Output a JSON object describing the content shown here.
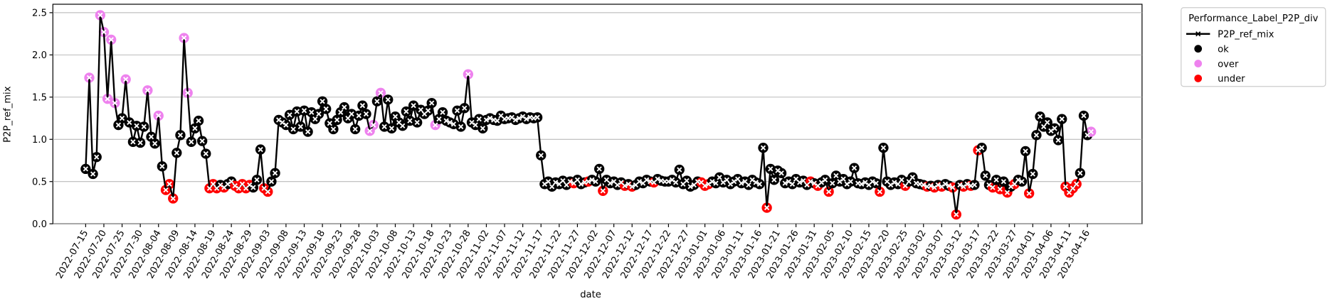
{
  "chart_data": {
    "type": "line",
    "x_label": "date",
    "y_label": "P2P_ref_mix",
    "grid": "y",
    "legend": "outside upper right",
    "xlim": [
      "2022-07-06",
      "2023-05-01"
    ],
    "ylim": [
      0,
      2.6
    ],
    "yticks": [
      {
        "value": 0,
        "label": "0.0"
      },
      {
        "value": 0.5,
        "label": "0.5"
      },
      {
        "value": 1,
        "label": "1.0"
      },
      {
        "value": 1.5,
        "label": "1.5"
      },
      {
        "value": 2,
        "label": "2.0"
      },
      {
        "value": 2.5,
        "label": "2.5"
      }
    ],
    "xticks": [
      "2022-07-15",
      "2022-07-20",
      "2022-07-25",
      "2022-07-30",
      "2022-08-04",
      "2022-08-09",
      "2022-08-14",
      "2022-08-19",
      "2022-08-24",
      "2022-08-29",
      "2022-09-03",
      "2022-09-08",
      "2022-09-13",
      "2022-09-18",
      "2022-09-23",
      "2022-09-28",
      "2022-10-03",
      "2022-10-08",
      "2022-10-13",
      "2022-10-18",
      "2022-10-23",
      "2022-10-28",
      "2022-11-02",
      "2022-11-07",
      "2022-11-12",
      "2022-11-17",
      "2022-11-22",
      "2022-11-27",
      "2022-12-02",
      "2022-12-07",
      "2022-12-12",
      "2022-12-17",
      "2022-12-22",
      "2022-12-27",
      "2023-01-01",
      "2023-01-06",
      "2023-01-11",
      "2023-01-16",
      "2023-01-21",
      "2023-01-26",
      "2023-01-31",
      "2023-02-05",
      "2023-02-10",
      "2023-02-15",
      "2023-02-20",
      "2023-02-25",
      "2023-03-02",
      "2023-03-07",
      "2023-03-12",
      "2023-03-17",
      "2023-03-22",
      "2023-03-27",
      "2023-04-01",
      "2023-04-06",
      "2023-04-11",
      "2023-04-16"
    ],
    "x": [
      "2022-07-15",
      "2022-07-16",
      "2022-07-17",
      "2022-07-18",
      "2022-07-19",
      "2022-07-20",
      "2022-07-21",
      "2022-07-22",
      "2022-07-23",
      "2022-07-24",
      "2022-07-25",
      "2022-07-26",
      "2022-07-27",
      "2022-07-28",
      "2022-07-29",
      "2022-07-30",
      "2022-07-31",
      "2022-08-01",
      "2022-08-02",
      "2022-08-03",
      "2022-08-04",
      "2022-08-05",
      "2022-08-06",
      "2022-08-07",
      "2022-08-08",
      "2022-08-09",
      "2022-08-10",
      "2022-08-11",
      "2022-08-12",
      "2022-08-13",
      "2022-08-14",
      "2022-08-15",
      "2022-08-16",
      "2022-08-17",
      "2022-08-18",
      "2022-08-19",
      "2022-08-20",
      "2022-08-21",
      "2022-08-22",
      "2022-08-23",
      "2022-08-24",
      "2022-08-25",
      "2022-08-26",
      "2022-08-27",
      "2022-08-28",
      "2022-08-29",
      "2022-08-30",
      "2022-08-31",
      "2022-09-01",
      "2022-09-02",
      "2022-09-03",
      "2022-09-04",
      "2022-09-05",
      "2022-09-06",
      "2022-09-07",
      "2022-09-08",
      "2022-09-09",
      "2022-09-10",
      "2022-09-11",
      "2022-09-12",
      "2022-09-13",
      "2022-09-14",
      "2022-09-15",
      "2022-09-16",
      "2022-09-17",
      "2022-09-18",
      "2022-09-19",
      "2022-09-20",
      "2022-09-21",
      "2022-09-22",
      "2022-09-23",
      "2022-09-24",
      "2022-09-25",
      "2022-09-26",
      "2022-09-27",
      "2022-09-28",
      "2022-09-29",
      "2022-09-30",
      "2022-10-01",
      "2022-10-02",
      "2022-10-03",
      "2022-10-04",
      "2022-10-05",
      "2022-10-06",
      "2022-10-07",
      "2022-10-08",
      "2022-10-09",
      "2022-10-10",
      "2022-10-11",
      "2022-10-12",
      "2022-10-13",
      "2022-10-14",
      "2022-10-15",
      "2022-10-16",
      "2022-10-17",
      "2022-10-18",
      "2022-10-19",
      "2022-10-20",
      "2022-10-21",
      "2022-10-22",
      "2022-10-23",
      "2022-10-24",
      "2022-10-25",
      "2022-10-26",
      "2022-10-27",
      "2022-10-28",
      "2022-10-29",
      "2022-10-30",
      "2022-10-31",
      "2022-11-01",
      "2022-11-02",
      "2022-11-03",
      "2022-11-04",
      "2022-11-05",
      "2022-11-06",
      "2022-11-07",
      "2022-11-08",
      "2022-11-09",
      "2022-11-10",
      "2022-11-11",
      "2022-11-12",
      "2022-11-13",
      "2022-11-14",
      "2022-11-15",
      "2022-11-16",
      "2022-11-17",
      "2022-11-18",
      "2022-11-19",
      "2022-11-20",
      "2022-11-21",
      "2022-11-22",
      "2022-11-23",
      "2022-11-24",
      "2022-11-25",
      "2022-11-26",
      "2022-11-27",
      "2022-11-28",
      "2022-11-29",
      "2022-11-30",
      "2022-12-01",
      "2022-12-02",
      "2022-12-03",
      "2022-12-04",
      "2022-12-05",
      "2022-12-06",
      "2022-12-07",
      "2022-12-08",
      "2022-12-09",
      "2022-12-10",
      "2022-12-11",
      "2022-12-12",
      "2022-12-13",
      "2022-12-14",
      "2022-12-15",
      "2022-12-16",
      "2022-12-17",
      "2022-12-18",
      "2022-12-19",
      "2022-12-20",
      "2022-12-21",
      "2022-12-22",
      "2022-12-23",
      "2022-12-24",
      "2022-12-25",
      "2022-12-26",
      "2022-12-27",
      "2022-12-28",
      "2022-12-29",
      "2022-12-30",
      "2022-12-31",
      "2023-01-01",
      "2023-01-02",
      "2023-01-03",
      "2023-01-04",
      "2023-01-05",
      "2023-01-06",
      "2023-01-07",
      "2023-01-08",
      "2023-01-09",
      "2023-01-10",
      "2023-01-11",
      "2023-01-12",
      "2023-01-13",
      "2023-01-14",
      "2023-01-15",
      "2023-01-16",
      "2023-01-17",
      "2023-01-18",
      "2023-01-19",
      "2023-01-20",
      "2023-01-21",
      "2023-01-22",
      "2023-01-23",
      "2023-01-24",
      "2023-01-25",
      "2023-01-26",
      "2023-01-27",
      "2023-01-28",
      "2023-01-29",
      "2023-01-30",
      "2023-01-31",
      "2023-02-01",
      "2023-02-02",
      "2023-02-03",
      "2023-02-04",
      "2023-02-05",
      "2023-02-06",
      "2023-02-07",
      "2023-02-08",
      "2023-02-09",
      "2023-02-10",
      "2023-02-11",
      "2023-02-12",
      "2023-02-13",
      "2023-02-14",
      "2023-02-15",
      "2023-02-16",
      "2023-02-17",
      "2023-02-18",
      "2023-02-19",
      "2023-02-20",
      "2023-02-21",
      "2023-02-22",
      "2023-02-23",
      "2023-02-24",
      "2023-02-25",
      "2023-02-26",
      "2023-02-27",
      "2023-02-28",
      "2023-03-01",
      "2023-03-02",
      "2023-03-03",
      "2023-03-04",
      "2023-03-05",
      "2023-03-06",
      "2023-03-07",
      "2023-03-08",
      "2023-03-09",
      "2023-03-10",
      "2023-03-11",
      "2023-03-12",
      "2023-03-13",
      "2023-03-14",
      "2023-03-15",
      "2023-03-16",
      "2023-03-17",
      "2023-03-18",
      "2023-03-19",
      "2023-03-20",
      "2023-03-21",
      "2023-03-22",
      "2023-03-23",
      "2023-03-24",
      "2023-03-25",
      "2023-03-26",
      "2023-03-27",
      "2023-03-28",
      "2023-03-29",
      "2023-03-30",
      "2023-03-31",
      "2023-04-01",
      "2023-04-02",
      "2023-04-03",
      "2023-04-04",
      "2023-04-05",
      "2023-04-06",
      "2023-04-07",
      "2023-04-08",
      "2023-04-09",
      "2023-04-10",
      "2023-04-11",
      "2023-04-12",
      "2023-04-13",
      "2023-04-14",
      "2023-04-15",
      "2023-04-16",
      "2023-04-17"
    ],
    "series": [
      {
        "name": "P2P_ref_mix",
        "color": "#000000",
        "values": [
          0.65,
          1.73,
          0.59,
          0.79,
          2.47,
          2.27,
          1.48,
          2.18,
          1.43,
          1.17,
          1.25,
          1.71,
          1.2,
          0.97,
          1.16,
          0.96,
          1.15,
          1.58,
          1.03,
          0.95,
          1.28,
          0.68,
          0.4,
          0.47,
          0.3,
          0.84,
          1.05,
          2.2,
          1.55,
          0.97,
          1.13,
          1.22,
          0.98,
          0.83,
          0.42,
          0.47,
          0.42,
          0.46,
          0.43,
          0.47,
          0.5,
          0.45,
          0.42,
          0.47,
          0.42,
          0.46,
          0.43,
          0.52,
          0.88,
          0.42,
          0.38,
          0.5,
          0.6,
          1.23,
          1.2,
          1.17,
          1.29,
          1.12,
          1.33,
          1.15,
          1.34,
          1.09,
          1.32,
          1.24,
          1.3,
          1.45,
          1.36,
          1.19,
          1.12,
          1.23,
          1.32,
          1.38,
          1.25,
          1.3,
          1.12,
          1.28,
          1.4,
          1.3,
          1.1,
          1.17,
          1.45,
          1.55,
          1.15,
          1.47,
          1.13,
          1.27,
          1.2,
          1.16,
          1.33,
          1.22,
          1.4,
          1.2,
          1.35,
          1.3,
          1.34,
          1.43,
          1.17,
          1.24,
          1.32,
          1.22,
          1.2,
          1.18,
          1.34,
          1.15,
          1.37,
          1.77,
          1.2,
          1.17,
          1.24,
          1.13,
          1.23,
          1.25,
          1.23,
          1.22,
          1.28,
          1.24,
          1.25,
          1.26,
          1.23,
          1.25,
          1.27,
          1.24,
          1.26,
          1.25,
          1.26,
          0.81,
          0.47,
          0.5,
          0.44,
          0.49,
          0.47,
          0.51,
          0.46,
          0.5,
          0.48,
          0.52,
          0.47,
          0.49,
          0.5,
          0.52,
          0.5,
          0.65,
          0.39,
          0.52,
          0.48,
          0.5,
          0.46,
          0.49,
          0.45,
          0.47,
          0.44,
          0.46,
          0.5,
          0.48,
          0.52,
          0.5,
          0.49,
          0.53,
          0.51,
          0.5,
          0.5,
          0.52,
          0.49,
          0.64,
          0.47,
          0.51,
          0.44,
          0.46,
          0.5,
          0.49,
          0.45,
          0.47,
          0.5,
          0.48,
          0.55,
          0.49,
          0.52,
          0.47,
          0.5,
          0.53,
          0.48,
          0.5,
          0.46,
          0.52,
          0.49,
          0.47,
          0.9,
          0.19,
          0.65,
          0.52,
          0.63,
          0.6,
          0.48,
          0.5,
          0.47,
          0.53,
          0.49,
          0.51,
          0.46,
          0.5,
          0.48,
          0.45,
          0.49,
          0.52,
          0.38,
          0.48,
          0.57,
          0.5,
          0.53,
          0.47,
          0.5,
          0.66,
          0.48,
          0.47,
          0.49,
          0.46,
          0.5,
          0.48,
          0.38,
          0.9,
          0.5,
          0.46,
          0.49,
          0.47,
          0.52,
          0.45,
          0.5,
          0.55,
          0.48,
          0.47,
          0.46,
          0.44,
          0.45,
          0.43,
          0.46,
          0.44,
          0.47,
          0.45,
          0.43,
          0.11,
          0.46,
          0.44,
          0.47,
          0.45,
          0.46,
          0.87,
          0.9,
          0.57,
          0.46,
          0.43,
          0.52,
          0.41,
          0.5,
          0.37,
          0.44,
          0.47,
          0.52,
          0.5,
          0.86,
          0.36,
          0.59,
          1.05,
          1.27,
          1.15,
          1.2,
          1.1,
          1.13,
          0.99,
          1.24,
          0.44,
          0.37,
          0.42,
          0.47,
          0.6,
          1.28,
          1.05,
          1.09
        ]
      }
    ],
    "hue": {
      "title": "Performance_Label_P2P_div",
      "names": [
        "ok",
        "over",
        "under"
      ],
      "colors": [
        "#000000",
        "#ee82ee",
        "#ff0000"
      ],
      "values": [
        "ok",
        "over",
        "ok",
        "ok",
        "over",
        "over",
        "over",
        "over",
        "over",
        "ok",
        "ok",
        "over",
        "ok",
        "ok",
        "ok",
        "ok",
        "ok",
        "over",
        "ok",
        "ok",
        "over",
        "ok",
        "under",
        "under",
        "under",
        "ok",
        "ok",
        "over",
        "over",
        "ok",
        "ok",
        "ok",
        "ok",
        "ok",
        "under",
        "under",
        "under",
        "ok",
        "under",
        "ok",
        "ok",
        "under",
        "under",
        "under",
        "under",
        "under",
        "ok",
        "ok",
        "ok",
        "under",
        "under",
        "ok",
        "ok",
        "ok",
        "ok",
        "ok",
        "ok",
        "ok",
        "ok",
        "ok",
        "ok",
        "ok",
        "ok",
        "ok",
        "ok",
        "ok",
        "ok",
        "ok",
        "ok",
        "ok",
        "ok",
        "ok",
        "ok",
        "ok",
        "ok",
        "ok",
        "ok",
        "ok",
        "over",
        "over",
        "ok",
        "over",
        "ok",
        "ok",
        "ok",
        "ok",
        "ok",
        "ok",
        "ok",
        "ok",
        "ok",
        "ok",
        "ok",
        "ok",
        "ok",
        "ok",
        "over",
        "ok",
        "ok",
        "ok",
        "ok",
        "ok",
        "ok",
        "ok",
        "ok",
        "over",
        "ok",
        "ok",
        "ok",
        "ok",
        "ok",
        "ok",
        "ok",
        "ok",
        "ok",
        "ok",
        "ok",
        "ok",
        "ok",
        "ok",
        "ok",
        "ok",
        "ok",
        "ok",
        "ok",
        "ok",
        "ok",
        "ok",
        "ok",
        "ok",
        "ok",
        "ok",
        "ok",
        "ok",
        "under",
        "ok",
        "ok",
        "ok",
        "under",
        "ok",
        "ok",
        "ok",
        "under",
        "ok",
        "ok",
        "ok",
        "ok",
        "ok",
        "under",
        "ok",
        "under",
        "ok",
        "ok",
        "ok",
        "ok",
        "ok",
        "under",
        "ok",
        "ok",
        "ok",
        "ok",
        "ok",
        "ok",
        "ok",
        "ok",
        "ok",
        "ok",
        "ok",
        "ok",
        "under",
        "under",
        "under",
        "ok",
        "ok",
        "ok",
        "ok",
        "ok",
        "ok",
        "ok",
        "ok",
        "ok",
        "ok",
        "ok",
        "ok",
        "ok",
        "ok",
        "ok",
        "under",
        "ok",
        "ok",
        "ok",
        "ok",
        "ok",
        "ok",
        "ok",
        "ok",
        "ok",
        "ok",
        "ok",
        "under",
        "ok",
        "under",
        "ok",
        "ok",
        "under",
        "ok",
        "ok",
        "ok",
        "ok",
        "ok",
        "ok",
        "ok",
        "ok",
        "ok",
        "ok",
        "ok",
        "ok",
        "ok",
        "under",
        "ok",
        "ok",
        "ok",
        "ok",
        "ok",
        "ok",
        "under",
        "ok",
        "ok",
        "ok",
        "ok",
        "ok",
        "under",
        "ok",
        "under",
        "ok",
        "under",
        "ok",
        "ok",
        "under",
        "under",
        "ok",
        "under",
        "ok",
        "under",
        "ok",
        "under",
        "ok",
        "ok",
        "ok",
        "under",
        "ok",
        "under",
        "ok",
        "under",
        "ok",
        "under",
        "ok",
        "ok",
        "ok",
        "under",
        "ok",
        "ok",
        "ok",
        "ok",
        "ok",
        "ok",
        "ok",
        "ok",
        "ok",
        "under",
        "under",
        "under",
        "under",
        "ok",
        "ok",
        "ok",
        "over"
      ]
    }
  }
}
